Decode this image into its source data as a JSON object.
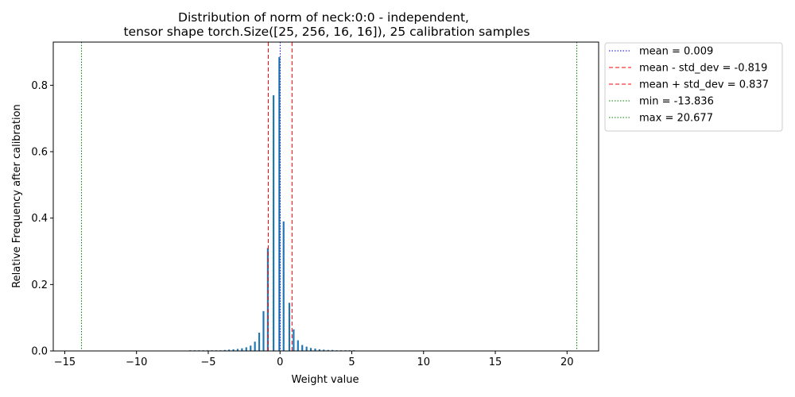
{
  "chart_data": {
    "type": "bar",
    "title_lines": [
      "Distribution of norm of neck:0:0 - independent,",
      "tensor shape torch.Size([25, 256, 16, 16]), 25 calibration samples"
    ],
    "xlabel": "Weight value",
    "ylabel": "Relative Frequency after calibration",
    "xlim": [
      -15.8,
      22.2
    ],
    "ylim": [
      0,
      0.93
    ],
    "xticks": [
      -15,
      -10,
      -5,
      0,
      5,
      10,
      15,
      20
    ],
    "xtick_labels": [
      "−15",
      "−10",
      "−5",
      "0",
      "5",
      "10",
      "15",
      "20"
    ],
    "yticks": [
      0.0,
      0.2,
      0.4,
      0.6,
      0.8
    ],
    "ytick_labels": [
      "0.0",
      "0.2",
      "0.4",
      "0.6",
      "0.8"
    ],
    "bar_color": "#1f77b4",
    "bar_width": 0.12,
    "bars": {
      "x": [
        -6.25,
        -5.95,
        -5.65,
        -5.35,
        -5.05,
        -4.75,
        -4.45,
        -4.15,
        -3.85,
        -3.55,
        -3.25,
        -2.95,
        -2.65,
        -2.35,
        -2.05,
        -1.75,
        -1.45,
        -1.15,
        -0.85,
        -0.45,
        -0.05,
        0.25,
        0.65,
        0.95,
        1.25,
        1.55,
        1.85,
        2.15,
        2.45,
        2.75,
        3.05,
        3.35,
        3.65,
        3.95,
        4.25,
        4.55,
        4.85,
        5.15
      ],
      "y": [
        0.002,
        0.002,
        0.002,
        0.002,
        0.002,
        0.002,
        0.002,
        0.002,
        0.003,
        0.004,
        0.005,
        0.006,
        0.008,
        0.011,
        0.016,
        0.028,
        0.055,
        0.12,
        0.31,
        0.77,
        0.885,
        0.39,
        0.145,
        0.065,
        0.032,
        0.018,
        0.013,
        0.009,
        0.007,
        0.005,
        0.004,
        0.003,
        0.003,
        0.002,
        0.002,
        0.002,
        0.002,
        0.002
      ]
    },
    "vlines": [
      {
        "label": "mean = 0.009",
        "x": 0.009,
        "color": "#0000ff",
        "style": "dotted"
      },
      {
        "label": "mean - std_dev = -0.819",
        "x": -0.819,
        "color": "#ff0000",
        "style": "dashed"
      },
      {
        "label": "mean + std_dev = 0.837",
        "x": 0.837,
        "color": "#ff0000",
        "style": "dashed"
      },
      {
        "label": "min = -13.836",
        "x": -13.836,
        "color": "#008000",
        "style": "dotted"
      },
      {
        "label": "max = 20.677",
        "x": 20.677,
        "color": "#008000",
        "style": "dotted"
      }
    ],
    "grid": false,
    "legend_position": "outside-upper-right"
  }
}
